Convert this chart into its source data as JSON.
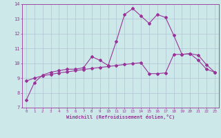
{
  "xlabel": "Windchill (Refroidissement éolien,°C)",
  "background_color": "#cce8e8",
  "grid_color": "#aabbcc",
  "line_color": "#993399",
  "xlim": [
    -0.5,
    23.5
  ],
  "ylim": [
    7,
    14
  ],
  "yticks": [
    7,
    8,
    9,
    10,
    11,
    12,
    13,
    14
  ],
  "xticks": [
    0,
    1,
    2,
    3,
    4,
    5,
    6,
    7,
    8,
    9,
    10,
    11,
    12,
    13,
    14,
    15,
    16,
    17,
    18,
    19,
    20,
    21,
    22,
    23
  ],
  "series1_x": [
    0,
    1,
    2,
    3,
    4,
    5,
    6,
    7,
    8,
    9,
    10,
    11,
    12,
    13,
    14,
    15,
    16,
    17,
    18,
    19,
    20,
    21,
    22,
    23
  ],
  "series1_y": [
    7.5,
    8.7,
    9.2,
    9.4,
    9.5,
    9.6,
    9.6,
    9.7,
    10.45,
    10.2,
    9.85,
    11.5,
    13.3,
    13.7,
    13.2,
    12.7,
    13.3,
    13.1,
    11.9,
    10.6,
    10.65,
    10.2,
    9.6,
    9.4
  ],
  "series2_y": [
    8.8,
    9.0,
    9.15,
    9.25,
    9.35,
    9.42,
    9.5,
    9.58,
    9.65,
    9.72,
    9.78,
    9.85,
    9.92,
    9.98,
    10.04,
    9.3,
    9.3,
    9.35,
    10.6,
    10.6,
    10.65,
    10.55,
    9.9,
    9.4
  ]
}
